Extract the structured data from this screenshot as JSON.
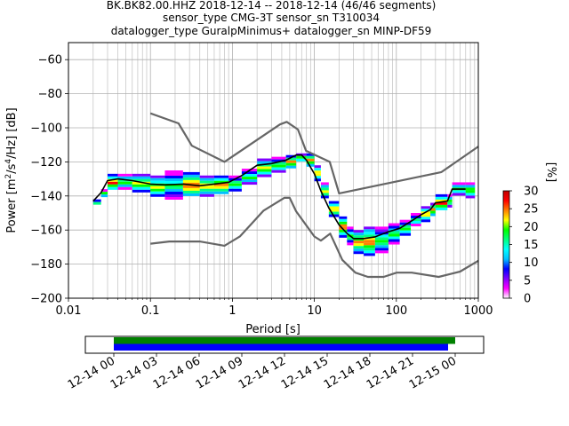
{
  "title": {
    "line1": "BK.BK82.00.HHZ   2018-12-14 -- 2018-12-14  (46/46 segments)",
    "line2": "sensor_type CMG-3T sensor_sn T310034",
    "line3": "datalogger_type GuralpMinimus+ datalogger_sn MINP-DF59"
  },
  "chart_data": [
    {
      "type": "heatmap",
      "name": "ppsd",
      "xlabel": "Period [s]",
      "ylabel_main": "Power [m",
      "ylabel_sup1": "2",
      "ylabel_mid": "/s",
      "ylabel_sup2": "4",
      "ylabel_end": "/Hz] [dB]",
      "xscale": "log",
      "xlim": [
        0.01,
        1000
      ],
      "ylim": [
        -200,
        -50
      ],
      "xticks": [
        0.01,
        0.1,
        1,
        10,
        100,
        1000
      ],
      "xtick_labels": [
        "0.01",
        "0.1",
        "1",
        "10",
        "100",
        "1000"
      ],
      "yticks": [
        -200,
        -180,
        -160,
        -140,
        -120,
        -100,
        -80,
        -60
      ],
      "ytick_labels": [
        "−200",
        "−180",
        "−160",
        "−140",
        "−120",
        "−100",
        "−80",
        "−60"
      ],
      "grid": true,
      "colorbar": {
        "label": "[%]",
        "min": 0,
        "max": 30,
        "ticks": [
          0,
          5,
          10,
          15,
          20,
          25,
          30
        ],
        "tick_labels": [
          "0",
          "5",
          "10",
          "15",
          "20",
          "25",
          "30"
        ],
        "colors": [
          "#ffffff",
          "#ff00ff",
          "#8000ff",
          "#0000ff",
          "#00c0ff",
          "#00ffff",
          "#00ff80",
          "#00ff00",
          "#ffff00",
          "#ff8000",
          "#ff0000",
          "#c00000"
        ]
      },
      "nhnm": {
        "period": [
          0.1,
          0.22,
          0.32,
          0.8,
          3.8,
          4.6,
          6.3,
          7.9,
          15.4,
          20,
          354.8,
          1000
        ],
        "power": [
          -91.5,
          -97.4,
          -110.5,
          -120,
          -98,
          -96.5,
          -101,
          -113.5,
          -120,
          -138.5,
          -126,
          -111
        ]
      },
      "nlnm": {
        "period": [
          0.1,
          0.17,
          0.4,
          0.8,
          1.24,
          2.4,
          4.3,
          5,
          6,
          10,
          12,
          15.6,
          21.9,
          31.6,
          45,
          70,
          101,
          154,
          328,
          600,
          1000
        ],
        "power": [
          -168,
          -166.7,
          -166.7,
          -169.2,
          -163.7,
          -148.6,
          -141.1,
          -141.1,
          -149,
          -163.8,
          -166.2,
          -162.1,
          -177.5,
          -185,
          -187.5,
          -187.5,
          -185,
          -185,
          -187.5,
          -184.4,
          -178
        ]
      },
      "mode_curve": {
        "period": [
          0.02,
          0.025,
          0.03,
          0.04,
          0.06,
          0.1,
          0.15,
          0.25,
          0.4,
          0.6,
          0.9,
          1.3,
          2,
          3,
          4.5,
          6,
          7,
          8,
          10,
          12,
          15,
          20,
          25,
          30,
          40,
          55,
          80,
          110,
          150,
          200,
          260,
          300,
          420,
          480,
          700
        ],
        "power": [
          -143,
          -138,
          -131,
          -130,
          -131,
          -133,
          -133.5,
          -133,
          -134,
          -133,
          -132,
          -128,
          -122,
          -121,
          -119,
          -116,
          -116,
          -119,
          -127,
          -137,
          -147,
          -157,
          -162,
          -165,
          -165,
          -164,
          -161,
          -159,
          -155,
          -151,
          -148,
          -144,
          -143,
          -136,
          -136
        ]
      },
      "density": [
        {
          "period": 0.02,
          "power": [
            -142,
            -144
          ]
        },
        {
          "period": 0.025,
          "power": [
            -136,
            -140
          ]
        },
        {
          "period": 0.03,
          "power": [
            -127,
            -136
          ]
        },
        {
          "period": 0.04,
          "power": [
            -127,
            -135
          ]
        },
        {
          "period": 0.06,
          "power": [
            -127,
            -137
          ]
        },
        {
          "period": 0.1,
          "power": [
            -128,
            -140
          ]
        },
        {
          "period": 0.15,
          "power": [
            -125,
            -141
          ]
        },
        {
          "period": 0.25,
          "power": [
            -126,
            -140
          ]
        },
        {
          "period": 0.4,
          "power": [
            -128,
            -139
          ]
        },
        {
          "period": 0.6,
          "power": [
            -128,
            -138
          ]
        },
        {
          "period": 0.9,
          "power": [
            -128,
            -137
          ]
        },
        {
          "period": 1.3,
          "power": [
            -124,
            -133
          ]
        },
        {
          "period": 2,
          "power": [
            -118,
            -128
          ]
        },
        {
          "period": 3,
          "power": [
            -117,
            -126
          ]
        },
        {
          "period": 4.5,
          "power": [
            -116,
            -123
          ]
        },
        {
          "period": 6,
          "power": [
            -115,
            -119
          ]
        },
        {
          "period": 8,
          "power": [
            -115,
            -122
          ]
        },
        {
          "period": 10,
          "power": [
            -122,
            -130
          ]
        },
        {
          "period": 12,
          "power": [
            -132,
            -141
          ]
        },
        {
          "period": 15,
          "power": [
            -143,
            -151
          ]
        },
        {
          "period": 20,
          "power": [
            -152,
            -163
          ]
        },
        {
          "period": 25,
          "power": [
            -158,
            -168
          ]
        },
        {
          "period": 30,
          "power": [
            -160,
            -173
          ]
        },
        {
          "period": 40,
          "power": [
            -158,
            -175
          ]
        },
        {
          "period": 55,
          "power": [
            -158,
            -173
          ]
        },
        {
          "period": 80,
          "power": [
            -156,
            -167
          ]
        },
        {
          "period": 110,
          "power": [
            -154,
            -163
          ]
        },
        {
          "period": 150,
          "power": [
            -150,
            -157
          ]
        },
        {
          "period": 200,
          "power": [
            -146,
            -154
          ]
        },
        {
          "period": 260,
          "power": [
            -144,
            -151
          ]
        },
        {
          "period": 300,
          "power": [
            -139,
            -148
          ]
        },
        {
          "period": 420,
          "power": [
            -139,
            -146
          ]
        },
        {
          "period": 480,
          "power": [
            -132,
            -139
          ]
        },
        {
          "period": 700,
          "power": [
            -132,
            -140
          ]
        }
      ]
    },
    {
      "type": "bar",
      "name": "coverage",
      "xlim": [
        "2018-12-13 22:00",
        "2018-12-15 02:00"
      ],
      "xtick_labels": [
        "12-14 00",
        "12-14 03",
        "12-14 06",
        "12-14 09",
        "12-14 12",
        "12-14 15",
        "12-14 18",
        "12-14 21",
        "12-15 00"
      ],
      "series": [
        {
          "color": "#008000",
          "start": "2018-12-14 00:00",
          "end": "2018-12-15 00:00"
        },
        {
          "color": "#0000ff",
          "start": "2018-12-14 00:00",
          "end": "2018-12-14 23:30"
        }
      ]
    }
  ]
}
